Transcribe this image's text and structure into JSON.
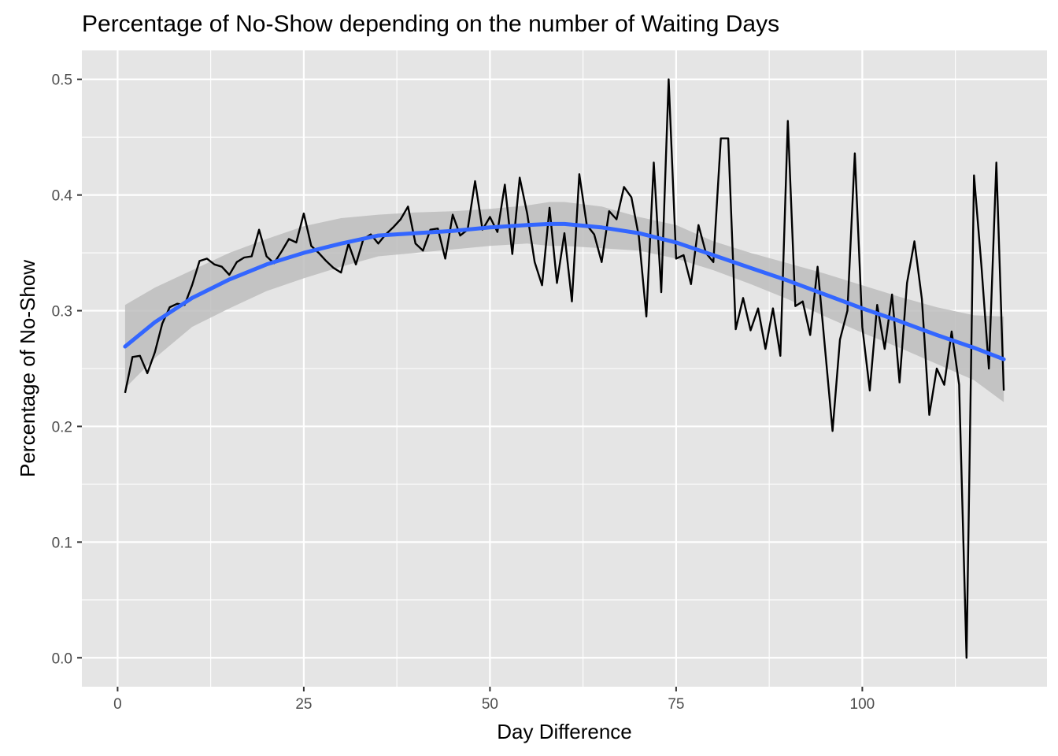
{
  "chart_data": {
    "type": "line",
    "title": "Percentage of No-Show depending on the number of Waiting Days",
    "xlabel": "Day Difference",
    "ylabel": "Percentage of No-Show",
    "xlim": [
      -4.8,
      124.8
    ],
    "ylim": [
      -0.025,
      0.525
    ],
    "x_ticks": [
      0,
      25,
      50,
      75,
      100
    ],
    "x_tick_labels": [
      "0",
      "25",
      "50",
      "75",
      "100"
    ],
    "y_ticks": [
      0.0,
      0.1,
      0.2,
      0.3,
      0.4,
      0.5
    ],
    "y_tick_labels": [
      "0.0",
      "0.1",
      "0.2",
      "0.3",
      "0.4",
      "0.5"
    ],
    "grid": true,
    "colors": {
      "panel_background": "#e5e5e5",
      "grid": "#ffffff",
      "observed_line": "#000000",
      "smooth_line": "#3366ff",
      "confidence_band": "#bdbdbd"
    },
    "series": [
      {
        "kind": "observed",
        "x": [
          1,
          2,
          3,
          4,
          5,
          6,
          7,
          8,
          9,
          10,
          11,
          12,
          13,
          14,
          15,
          16,
          17,
          18,
          19,
          20,
          21,
          22,
          23,
          24,
          25,
          26,
          27,
          28,
          29,
          30,
          31,
          32,
          33,
          34,
          35,
          36,
          37,
          38,
          39,
          40,
          41,
          42,
          43,
          44,
          45,
          46,
          47,
          48,
          49,
          50,
          51,
          52,
          53,
          54,
          55,
          56,
          57,
          58,
          59,
          60,
          61,
          62,
          63,
          64,
          65,
          66,
          67,
          68,
          69,
          70,
          71,
          72,
          73,
          74,
          75,
          76,
          77,
          78,
          79,
          80,
          81,
          82,
          83,
          84,
          85,
          86,
          87,
          88,
          89,
          90,
          91,
          92,
          93,
          94,
          95,
          96,
          97,
          98,
          99,
          100,
          101,
          102,
          103,
          104,
          105,
          106,
          107,
          108,
          109,
          110,
          111,
          112,
          113,
          114,
          115,
          116,
          117,
          118,
          119
        ],
        "y": [
          0.229,
          0.26,
          0.261,
          0.246,
          0.264,
          0.289,
          0.303,
          0.306,
          0.305,
          0.322,
          0.343,
          0.345,
          0.34,
          0.338,
          0.331,
          0.342,
          0.346,
          0.347,
          0.37,
          0.347,
          0.341,
          0.351,
          0.362,
          0.359,
          0.384,
          0.356,
          0.35,
          0.343,
          0.337,
          0.333,
          0.358,
          0.34,
          0.362,
          0.366,
          0.358,
          0.366,
          0.372,
          0.379,
          0.39,
          0.358,
          0.352,
          0.37,
          0.371,
          0.345,
          0.383,
          0.365,
          0.37,
          0.412,
          0.37,
          0.381,
          0.368,
          0.409,
          0.349,
          0.415,
          0.384,
          0.342,
          0.322,
          0.389,
          0.324,
          0.367,
          0.308,
          0.418,
          0.374,
          0.366,
          0.342,
          0.386,
          0.379,
          0.407,
          0.398,
          0.364,
          0.295,
          0.428,
          0.316,
          0.5,
          0.345,
          0.348,
          0.323,
          0.374,
          0.35,
          0.342,
          0.449,
          0.449,
          0.284,
          0.311,
          0.283,
          0.302,
          0.267,
          0.302,
          0.261,
          0.464,
          0.304,
          0.308,
          0.279,
          0.338,
          0.267,
          0.196,
          0.275,
          0.3,
          0.436,
          0.286,
          0.231,
          0.305,
          0.267,
          0.314,
          0.238,
          0.324,
          0.36,
          0.31,
          0.21,
          0.25,
          0.236,
          0.282,
          0.236,
          0.0,
          0.417,
          0.338,
          0.25,
          0.428,
          0.231
        ]
      },
      {
        "kind": "smooth",
        "x": [
          1,
          5,
          10,
          15,
          20,
          25,
          30,
          35,
          40,
          45,
          50,
          55,
          58,
          60,
          65,
          70,
          75,
          80,
          85,
          90,
          95,
          100,
          105,
          110,
          115,
          119
        ],
        "y": [
          0.269,
          0.29,
          0.311,
          0.327,
          0.34,
          0.35,
          0.358,
          0.365,
          0.367,
          0.369,
          0.372,
          0.374,
          0.375,
          0.375,
          0.372,
          0.367,
          0.359,
          0.348,
          0.337,
          0.326,
          0.314,
          0.302,
          0.291,
          0.279,
          0.268,
          0.258
        ],
        "ci_upper": [
          0.305,
          0.32,
          0.335,
          0.35,
          0.362,
          0.373,
          0.38,
          0.383,
          0.385,
          0.386,
          0.388,
          0.391,
          0.394,
          0.394,
          0.39,
          0.381,
          0.374,
          0.36,
          0.35,
          0.341,
          0.332,
          0.322,
          0.312,
          0.303,
          0.296,
          0.295
        ],
        "ci_lower": [
          0.233,
          0.259,
          0.286,
          0.302,
          0.317,
          0.328,
          0.338,
          0.347,
          0.35,
          0.353,
          0.356,
          0.358,
          0.356,
          0.356,
          0.354,
          0.352,
          0.345,
          0.335,
          0.323,
          0.31,
          0.295,
          0.281,
          0.268,
          0.254,
          0.24,
          0.221
        ]
      }
    ]
  }
}
